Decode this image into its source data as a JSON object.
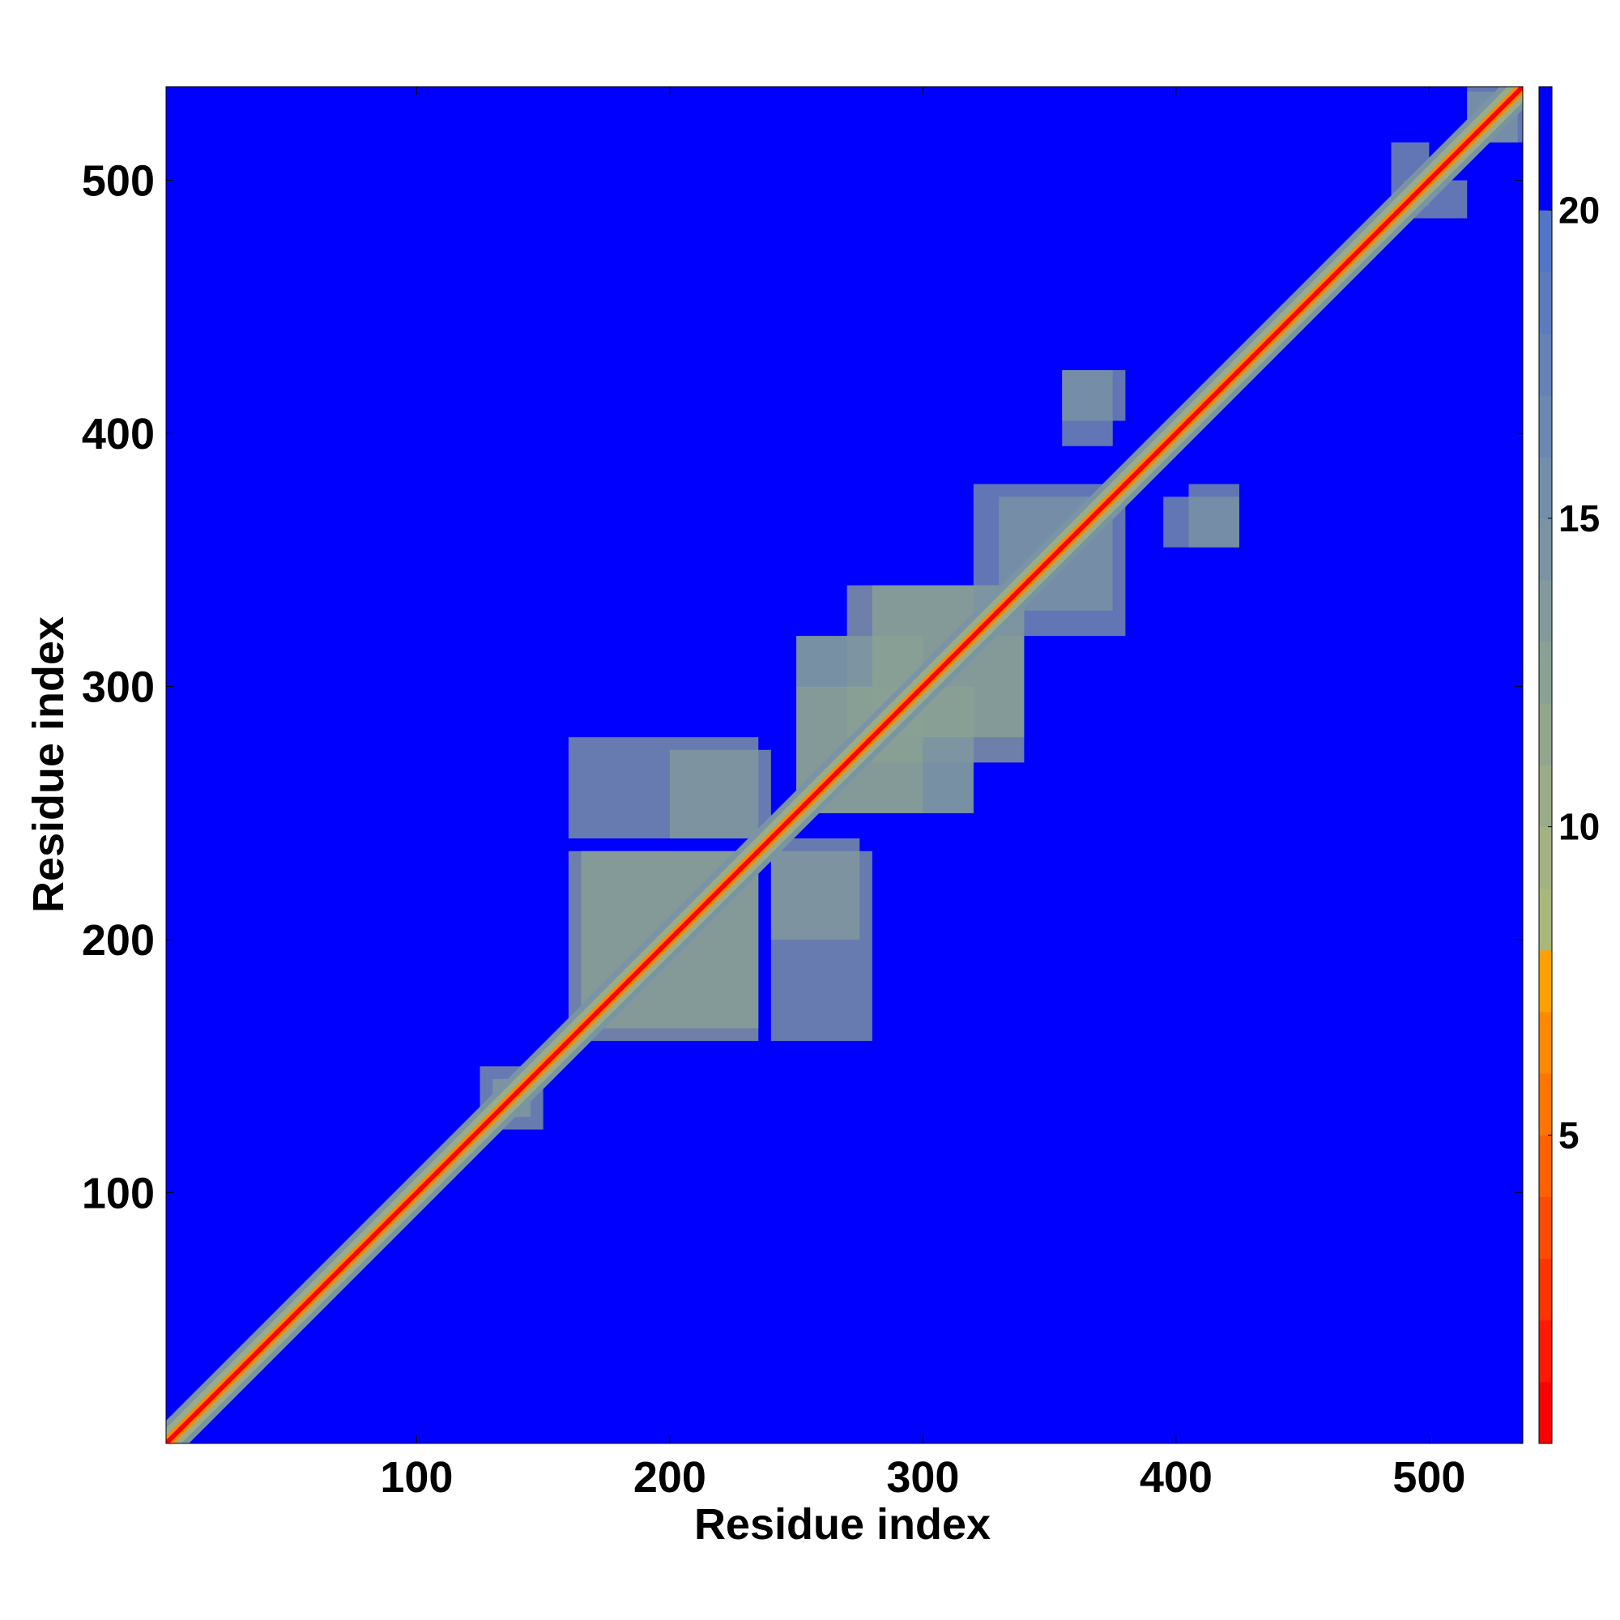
{
  "chart_data": {
    "type": "heatmap",
    "title": "",
    "xlabel": "Residue index",
    "ylabel": "Residue index",
    "xlim": [
      1,
      537
    ],
    "ylim": [
      1,
      537
    ],
    "xticks": [
      100,
      200,
      300,
      400,
      500
    ],
    "yticks": [
      100,
      200,
      300,
      400,
      500
    ],
    "xtick_labels": [
      "100",
      "200",
      "300",
      "400",
      "500"
    ],
    "ytick_labels": [
      "100",
      "200",
      "300",
      "400",
      "500"
    ],
    "grid": false,
    "colorbar": {
      "placement": "right",
      "range": [
        0,
        22
      ],
      "ticks": [
        5,
        10,
        15,
        20
      ],
      "tick_labels": [
        "5",
        "10",
        "15",
        "20"
      ],
      "bands": [
        {
          "min": 0,
          "max": 1,
          "color": "#ff0000"
        },
        {
          "min": 1,
          "max": 2,
          "color": "#ff1a00"
        },
        {
          "min": 2,
          "max": 3,
          "color": "#ff3300"
        },
        {
          "min": 3,
          "max": 4,
          "color": "#ff4a00"
        },
        {
          "min": 4,
          "max": 5,
          "color": "#ff6000"
        },
        {
          "min": 5,
          "max": 6,
          "color": "#ff7400"
        },
        {
          "min": 6,
          "max": 7,
          "color": "#ff8800"
        },
        {
          "min": 7,
          "max": 8,
          "color": "#ffa000"
        },
        {
          "min": 8,
          "max": 9,
          "color": "#a9b87a"
        },
        {
          "min": 9,
          "max": 10,
          "color": "#a2b281"
        },
        {
          "min": 10,
          "max": 11,
          "color": "#9aac87"
        },
        {
          "min": 11,
          "max": 12,
          "color": "#92a68e"
        },
        {
          "min": 12,
          "max": 13,
          "color": "#8aa095"
        },
        {
          "min": 13,
          "max": 14,
          "color": "#829a9c"
        },
        {
          "min": 14,
          "max": 15,
          "color": "#7a94a3"
        },
        {
          "min": 15,
          "max": 16,
          "color": "#728eaa"
        },
        {
          "min": 16,
          "max": 17,
          "color": "#6a88b1"
        },
        {
          "min": 17,
          "max": 18,
          "color": "#6282b8"
        },
        {
          "min": 18,
          "max": 19,
          "color": "#5a7cbf"
        },
        {
          "min": 19,
          "max": 20,
          "color": "#5276c6"
        },
        {
          "min": 20,
          "max": 22,
          "color": "#0000ff"
        }
      ]
    },
    "background_color": "#0000ff",
    "diagonal_band_color": "#ff0000",
    "near_diagonal_color": "#ff8800",
    "contact_color": "#8aa095",
    "contact_regions": [
      {
        "x": [
          165,
          235
        ],
        "y": [
          160,
          235
        ],
        "value": 12
      },
      {
        "x": [
          200,
          240
        ],
        "y": [
          240,
          275
        ],
        "value": 13
      },
      {
        "x": [
          240,
          280
        ],
        "y": [
          160,
          235
        ],
        "value": 13
      },
      {
        "x": [
          250,
          300
        ],
        "y": [
          250,
          320
        ],
        "value": 12
      },
      {
        "x": [
          280,
          340
        ],
        "y": [
          270,
          340
        ],
        "value": 12
      },
      {
        "x": [
          300,
          320
        ],
        "y": [
          250,
          280
        ],
        "value": 14
      },
      {
        "x": [
          330,
          380
        ],
        "y": [
          320,
          375
        ],
        "value": 14
      },
      {
        "x": [
          355,
          375
        ],
        "y": [
          395,
          425
        ],
        "value": 14
      },
      {
        "x": [
          405,
          425
        ],
        "y": [
          355,
          380
        ],
        "value": 14
      },
      {
        "x": [
          130,
          150
        ],
        "y": [
          125,
          145
        ],
        "value": 13
      },
      {
        "x": [
          485,
          500
        ],
        "y": [
          490,
          515
        ],
        "value": 14
      },
      {
        "x": [
          515,
          535
        ],
        "y": [
          515,
          537
        ],
        "value": 14
      }
    ]
  }
}
